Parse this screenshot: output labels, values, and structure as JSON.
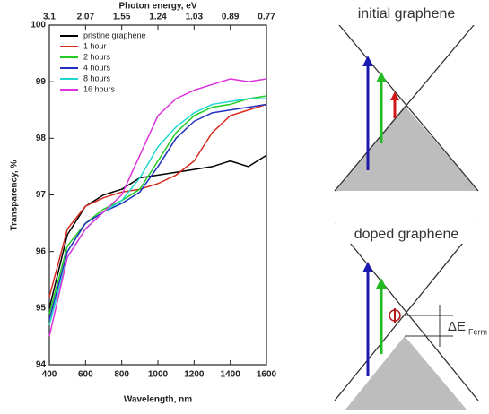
{
  "chart_data": {
    "type": "line",
    "xlabel": "Wavelength, nm",
    "ylabel": "Transparency, %",
    "x2label": "Photon energy, eV",
    "x": [
      400,
      500,
      600,
      700,
      800,
      900,
      1000,
      1100,
      1200,
      1300,
      1400,
      1500,
      1600
    ],
    "series": [
      {
        "name": "pristine graphene",
        "color": "#000000",
        "values": [
          95.0,
          96.3,
          96.8,
          97.0,
          97.1,
          97.3,
          97.35,
          97.4,
          97.45,
          97.5,
          97.6,
          97.5,
          97.7
        ]
      },
      {
        "name": "1 hour",
        "color": "#d62a1e",
        "values": [
          95.2,
          96.4,
          96.8,
          96.95,
          97.05,
          97.1,
          97.2,
          97.35,
          97.6,
          98.1,
          98.4,
          98.5,
          98.6
        ]
      },
      {
        "name": "2 hours",
        "color": "#22cc22",
        "values": [
          94.9,
          96.1,
          96.5,
          96.75,
          96.9,
          97.1,
          97.6,
          98.1,
          98.4,
          98.55,
          98.6,
          98.7,
          98.75
        ]
      },
      {
        "name": "4 hours",
        "color": "#1f2fbf",
        "values": [
          94.8,
          96.0,
          96.5,
          96.7,
          96.85,
          97.05,
          97.5,
          98.0,
          98.3,
          98.45,
          98.5,
          98.55,
          98.6
        ]
      },
      {
        "name": "8 hours",
        "color": "#22d6d0",
        "values": [
          94.7,
          95.9,
          96.4,
          96.7,
          96.9,
          97.3,
          97.85,
          98.2,
          98.45,
          98.6,
          98.65,
          98.7,
          98.7
        ]
      },
      {
        "name": "16 hours",
        "color": "#dd33dd",
        "values": [
          94.5,
          95.9,
          96.4,
          96.7,
          97.0,
          97.7,
          98.4,
          98.7,
          98.85,
          98.95,
          99.05,
          99.0,
          99.05
        ]
      }
    ],
    "xlim": [
      400,
      1600
    ],
    "ylim": [
      94,
      100
    ],
    "xticks": [
      400,
      600,
      800,
      1000,
      1200,
      1400,
      1600
    ],
    "yticks": [
      94,
      95,
      96,
      97,
      98,
      99,
      100
    ],
    "x2ticks": [
      {
        "value": 400,
        "label": "3.1"
      },
      {
        "value": 600,
        "label": "2.07"
      },
      {
        "value": 800,
        "label": "1.55"
      },
      {
        "value": 1000,
        "label": "1.24"
      },
      {
        "value": 1200,
        "label": "1.03"
      },
      {
        "value": 1400,
        "label": "0.89"
      },
      {
        "value": 1600,
        "label": "0.77"
      }
    ],
    "legend": "upper left"
  },
  "diagrams": [
    {
      "title": "initial graphene"
    },
    {
      "title": "doped graphene",
      "annotation": "ΔE",
      "annotation_sub": "Ferm"
    }
  ]
}
